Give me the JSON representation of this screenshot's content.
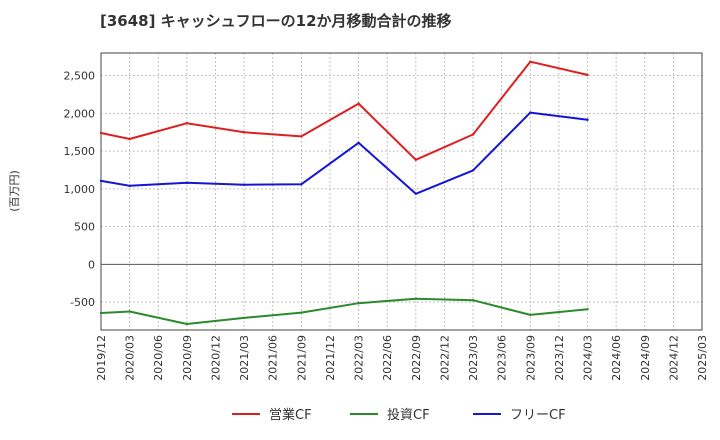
{
  "chart_data": {
    "type": "line",
    "title": "[3648]  キャッシュフローの12か月移動合計の推移",
    "ylabel": "(百万円)",
    "xlabel": "",
    "ylim": [
      -870,
      2800
    ],
    "yticks": [
      2500,
      2000,
      1500,
      1000,
      500,
      0,
      -500
    ],
    "ytick_labels": [
      "2,500",
      "2,000",
      "1,500",
      "1,000",
      "500",
      "0",
      "-500"
    ],
    "categories": [
      "2019/12",
      "2020/03",
      "2020/06",
      "2020/09",
      "2020/12",
      "2021/03",
      "2021/06",
      "2021/09",
      "2021/12",
      "2022/03",
      "2022/06",
      "2022/09",
      "2022/12",
      "2023/03",
      "2023/06",
      "2023/09",
      "2023/12",
      "2024/03",
      "2024/06",
      "2024/09",
      "2024/12",
      "2025/03"
    ],
    "grid": true,
    "legend_position": "bottom",
    "series": [
      {
        "name": "営業CF",
        "color": "#dd1f1f",
        "points": [
          {
            "x": 0,
            "y": 1740
          },
          {
            "x": 1,
            "y": 1660
          },
          {
            "x": 3,
            "y": 1870
          },
          {
            "x": 5,
            "y": 1750
          },
          {
            "x": 7,
            "y": 1695
          },
          {
            "x": 9,
            "y": 2130
          },
          {
            "x": 11,
            "y": 1385
          },
          {
            "x": 13,
            "y": 1720
          },
          {
            "x": 15,
            "y": 2685
          },
          {
            "x": 17,
            "y": 2510
          }
        ]
      },
      {
        "name": "投資CF",
        "color": "#2c8a2c",
        "points": [
          {
            "x": 0,
            "y": -645
          },
          {
            "x": 1,
            "y": -625
          },
          {
            "x": 3,
            "y": -790
          },
          {
            "x": 5,
            "y": -710
          },
          {
            "x": 7,
            "y": -640
          },
          {
            "x": 9,
            "y": -515
          },
          {
            "x": 11,
            "y": -455
          },
          {
            "x": 13,
            "y": -475
          },
          {
            "x": 15,
            "y": -670
          },
          {
            "x": 17,
            "y": -595
          }
        ]
      },
      {
        "name": "フリーCF",
        "color": "#1515d4",
        "points": [
          {
            "x": 0,
            "y": 1105
          },
          {
            "x": 1,
            "y": 1040
          },
          {
            "x": 3,
            "y": 1080
          },
          {
            "x": 5,
            "y": 1055
          },
          {
            "x": 7,
            "y": 1060
          },
          {
            "x": 9,
            "y": 1610
          },
          {
            "x": 11,
            "y": 935
          },
          {
            "x": 13,
            "y": 1245
          },
          {
            "x": 15,
            "y": 2010
          },
          {
            "x": 17,
            "y": 1915
          }
        ]
      }
    ]
  }
}
